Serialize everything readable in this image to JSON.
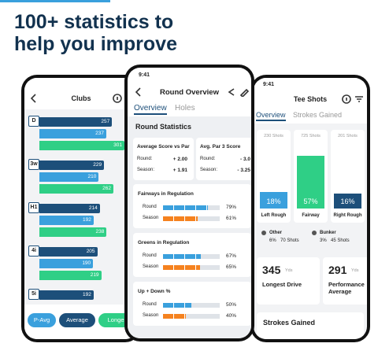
{
  "headline": {
    "lines": [
      "100+ statistics to",
      "help you improve"
    ]
  },
  "clubs": {
    "time": "9:41",
    "title": "Clubs",
    "clubs": [
      {
        "label": "D",
        "values": [
          257,
          237,
          301
        ]
      },
      {
        "label": "3w",
        "values": [
          229,
          210,
          262
        ]
      },
      {
        "label": "H1",
        "values": [
          214,
          192,
          238
        ]
      },
      {
        "label": "4i",
        "values": [
          205,
          190,
          219
        ]
      },
      {
        "label": "5i",
        "values": [
          192
        ]
      }
    ],
    "buttons": [
      "P-Avg",
      "Average",
      "Longest"
    ]
  },
  "round": {
    "time": "9:41",
    "title": "Round Overview",
    "tabs": [
      "Overview",
      "Holes"
    ],
    "section": "Round Statistics",
    "cards": [
      {
        "title": "Average Score vs Par",
        "rows": [
          {
            "label": "Round:",
            "value": "+ 2.00"
          },
          {
            "label": "Season:",
            "value": "+ 1.91"
          }
        ]
      },
      {
        "title": "Avg. Par 3 Score",
        "rows": [
          {
            "label": "Round:",
            "value": "- 3.0"
          },
          {
            "label": "Season:",
            "value": "- 3.25"
          }
        ]
      }
    ],
    "bars": [
      {
        "title": "Fairways in Regulation",
        "rows": [
          {
            "label": "Round",
            "value": 79,
            "value_label": "79%"
          },
          {
            "label": "Season",
            "value": 61,
            "value_label": "61%"
          }
        ]
      },
      {
        "title": "Greens in Regulation",
        "rows": [
          {
            "label": "Round",
            "value": 67,
            "value_label": "67%"
          },
          {
            "label": "Season",
            "value": 65,
            "value_label": "65%"
          }
        ]
      },
      {
        "title": "Up + Down %",
        "rows": [
          {
            "label": "Round",
            "value": 50,
            "value_label": "50%"
          },
          {
            "label": "Season",
            "value": 40,
            "value_label": "40%"
          }
        ]
      }
    ]
  },
  "tee": {
    "time": "9:41",
    "title": "Tee Shots",
    "tabs": [
      "Overview",
      "Strokes Gained"
    ],
    "columns": [
      {
        "shots": "230 Shots",
        "label": "Left Rough",
        "value": 18,
        "value_label": "18%"
      },
      {
        "shots": "725 Shots",
        "label": "Fairway",
        "value": 57,
        "value_label": "57%"
      },
      {
        "shots": "201 Shots",
        "label": "Right Rough",
        "value": 16,
        "value_label": "16%"
      }
    ],
    "extras": [
      {
        "label": "Other",
        "pct": "6%",
        "shots": "70 Shots"
      },
      {
        "label": "Bunker",
        "pct": "3%",
        "shots": "45 Shots"
      }
    ],
    "cards": [
      {
        "value": "345",
        "unit": "Yds",
        "label": "Longest Drive"
      },
      {
        "value": "291",
        "unit": "Yds",
        "label": "Performance Average"
      }
    ],
    "section": "Strokes Gained"
  }
}
